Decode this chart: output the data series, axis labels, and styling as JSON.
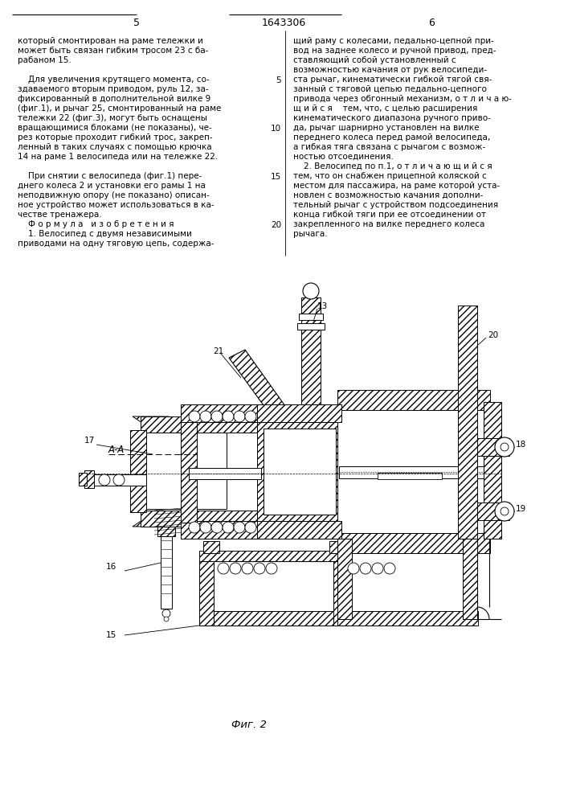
{
  "page_width": 7.07,
  "page_height": 10.0,
  "bg_color": "#ffffff",
  "header_page_left": "5",
  "header_patent": "1643306",
  "header_page_right": "6",
  "left_column_text": [
    "который смонтирован на раме тележки и",
    "может быть связан гибким тросом 23 с ба-",
    "рабаном 15.",
    "",
    "    Для увеличения крутящего момента, со-",
    "здаваемого вторым приводом, руль 12, за-",
    "фиксированный в дополнительной вилке 9",
    "(фиг.1), и рычаг 25, смонтированный на раме",
    "тележки 22 (фиг.3), могут быть оснащены",
    "вращающимися блоками (не показаны), че-",
    "рез которые проходит гибкий трос, закреп-",
    "ленный в таких случаях с помощью крючка",
    "14 на раме 1 велосипеда или на тележке 22.",
    "",
    "    При снятии с велосипеда (фиг.1) пере-",
    "днего колеса 2 и установки его рамы 1 на",
    "неподвижную опору (не показано) описан-",
    "ное устройство может использоваться в ка-",
    "честве тренажера.",
    "    Ф о р м у л а   и з о б р е т е н и я",
    "    1. Велосипед с двумя независимыми",
    "приводами на одну тяговую цепь, содержа-"
  ],
  "right_column_text": [
    "щий раму с колесами, педально-цепной при-",
    "вод на заднее колесо и ручной привод, пред-",
    "ставляющий собой установленный с",
    "возможностью качания от рук велосипеди-",
    "ста рычаг, кинематически гибкой тягой свя-",
    "занный с тяговой цепью педально-цепного",
    "привода через обгонный механизм, о т л и ч а ю-",
    "щ и й с я    тем, что, с целью расширения",
    "кинематического диапазона ручного приво-",
    "да, рычаг шарнирно установлен на вилке",
    "переднего колеса перед рамой велосипеда,",
    "а гибкая тяга связана с рычагом с возмож-",
    "ностью отсоединения.",
    "    2. Велосипед по п.1, о т л и ч а ю щ и й с я",
    "тем, что он снабжен прицепной коляской с",
    "местом для пассажира, на раме которой уста-",
    "новлен с возможностью качания дополни-",
    "тельный рычаг с устройством подсоединения",
    "конца гибкой тяги при ее отсоединении от",
    "закрепленного на вилке переднего колеса",
    "рычага."
  ],
  "fig_caption": "Фиг. 2",
  "label_aa": "А-А"
}
